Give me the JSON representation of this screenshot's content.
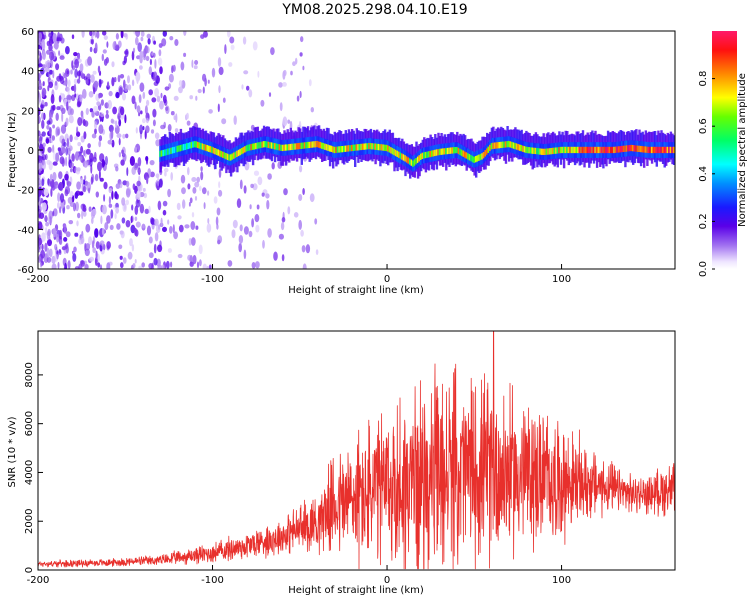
{
  "title": "YM08.2025.298.04.10.E19",
  "colors": {
    "snr_line": "#e8302c",
    "axis": "#000000",
    "background": "#ffffff"
  },
  "chart_data": [
    {
      "type": "heatmap",
      "name": "spectrogram",
      "xlabel": "Height of straight line (km)",
      "ylabel": "Frequency (Hz)",
      "xlim": [
        -200,
        165
      ],
      "ylim": [
        -60,
        60
      ],
      "xticks": [
        -200,
        -100,
        0,
        100
      ],
      "xtick_labels": [
        "-200",
        "-100",
        "0",
        "100"
      ],
      "yticks": [
        60,
        40,
        20,
        0,
        -20,
        -40,
        -60
      ],
      "ytick_labels": [
        "60",
        "40",
        "20",
        "0",
        "-20",
        "-40",
        "-60"
      ],
      "ridge": {
        "x": [
          -130,
          -110,
          -100,
          -90,
          -80,
          -70,
          -60,
          -50,
          -40,
          -30,
          -20,
          -10,
          0,
          10,
          15,
          20,
          30,
          40,
          50,
          55,
          60,
          70,
          80,
          90,
          100,
          110,
          120,
          130,
          140,
          150,
          165
        ],
        "freq": [
          -2,
          3,
          0,
          -4,
          1,
          3,
          1,
          2,
          3,
          0,
          1,
          2,
          1,
          -4,
          -7,
          -3,
          -1,
          0,
          -5,
          -3,
          2,
          3,
          0,
          -1,
          0,
          0,
          0,
          0,
          1,
          0,
          0
        ]
      },
      "colorbar": {
        "label": "Normalized spectral amplitude",
        "range": [
          0.0,
          1.0
        ],
        "ticks": [
          0.0,
          0.2,
          0.4,
          0.6,
          0.8
        ],
        "tick_labels": [
          "0.0",
          "0.2",
          "0.4",
          "0.6",
          "0.8"
        ]
      }
    },
    {
      "type": "line",
      "name": "snr",
      "xlabel": "Height of straight line (km)",
      "ylabel": "SNR (10 * v/v)",
      "xlim": [
        -200,
        165
      ],
      "ylim": [
        0,
        9800
      ],
      "xticks": [
        -200,
        -100,
        0,
        100
      ],
      "xtick_labels": [
        "-200",
        "-100",
        "0",
        "100"
      ],
      "yticks": [
        0,
        2000,
        4000,
        6000,
        8000
      ],
      "ytick_labels": [
        "0",
        "2000",
        "4000",
        "6000",
        "8000"
      ],
      "envelope": {
        "x": [
          -200,
          -160,
          -130,
          -100,
          -80,
          -60,
          -50,
          -40,
          -35,
          -30,
          -20,
          -10,
          0,
          10,
          20,
          30,
          40,
          50,
          60,
          70,
          80,
          90,
          100,
          110,
          120,
          130,
          140,
          150,
          160,
          165
        ],
        "base": [
          250,
          300,
          400,
          700,
          1000,
          1400,
          1700,
          2000,
          2400,
          2700,
          2900,
          3100,
          3300,
          3500,
          3700,
          3800,
          4000,
          4100,
          4100,
          4000,
          3900,
          3800,
          3600,
          3600,
          3500,
          3300,
          3100,
          3100,
          3300,
          3300
        ],
        "amp": [
          150,
          180,
          250,
          500,
          700,
          900,
          1200,
          1500,
          1800,
          2500,
          3200,
          3600,
          4000,
          4600,
          4800,
          5000,
          4800,
          4600,
          4400,
          4000,
          3700,
          3300,
          2800,
          2200,
          1600,
          1200,
          900,
          900,
          1300,
          1400
        ]
      },
      "peak": {
        "x": 61,
        "y": 9800
      }
    }
  ]
}
